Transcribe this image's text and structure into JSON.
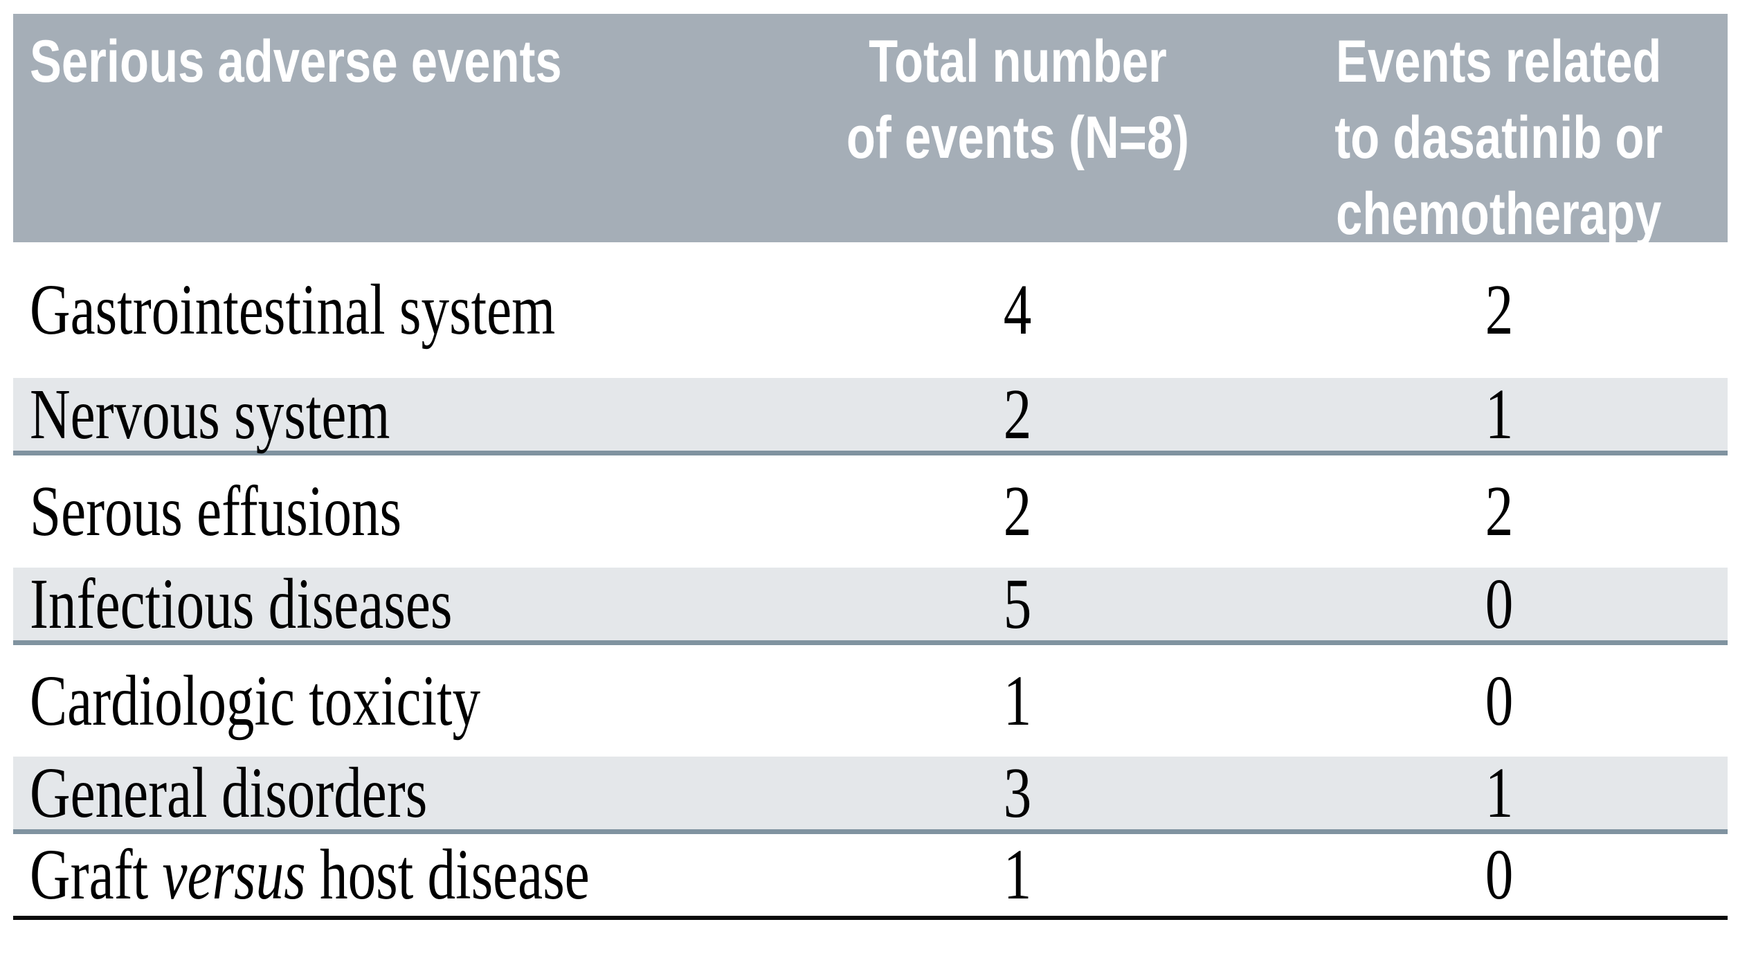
{
  "table": {
    "headers": [
      "Serious adverse events",
      "Total number\nof events (N=8)",
      "Events related\nto dasatinib or\nchemotherapy"
    ],
    "rows": [
      {
        "label": "Gastrointestinal system",
        "total": "4",
        "related": "2"
      },
      {
        "label": "Nervous system",
        "total": "2",
        "related": "1"
      },
      {
        "label": "Serous effusions",
        "total": "2",
        "related": "2"
      },
      {
        "label": "Infectious diseases",
        "total": "5",
        "related": "0"
      },
      {
        "label": "Cardiologic toxicity",
        "total": "1",
        "related": "0"
      },
      {
        "label": "General disorders",
        "total": "3",
        "related": "1"
      },
      {
        "label_prefix": "Graft ",
        "label_italic": "versus",
        "label_suffix": " host disease",
        "total": "1",
        "related": "0"
      }
    ],
    "colors": {
      "header_bg": "#a5aeb7",
      "header_text": "#ffffff",
      "stripe_bg": "#e4e7ea",
      "divider": "#8093a0",
      "bottom_rule": "#0b0b0b",
      "body_text": "#000000"
    }
  }
}
